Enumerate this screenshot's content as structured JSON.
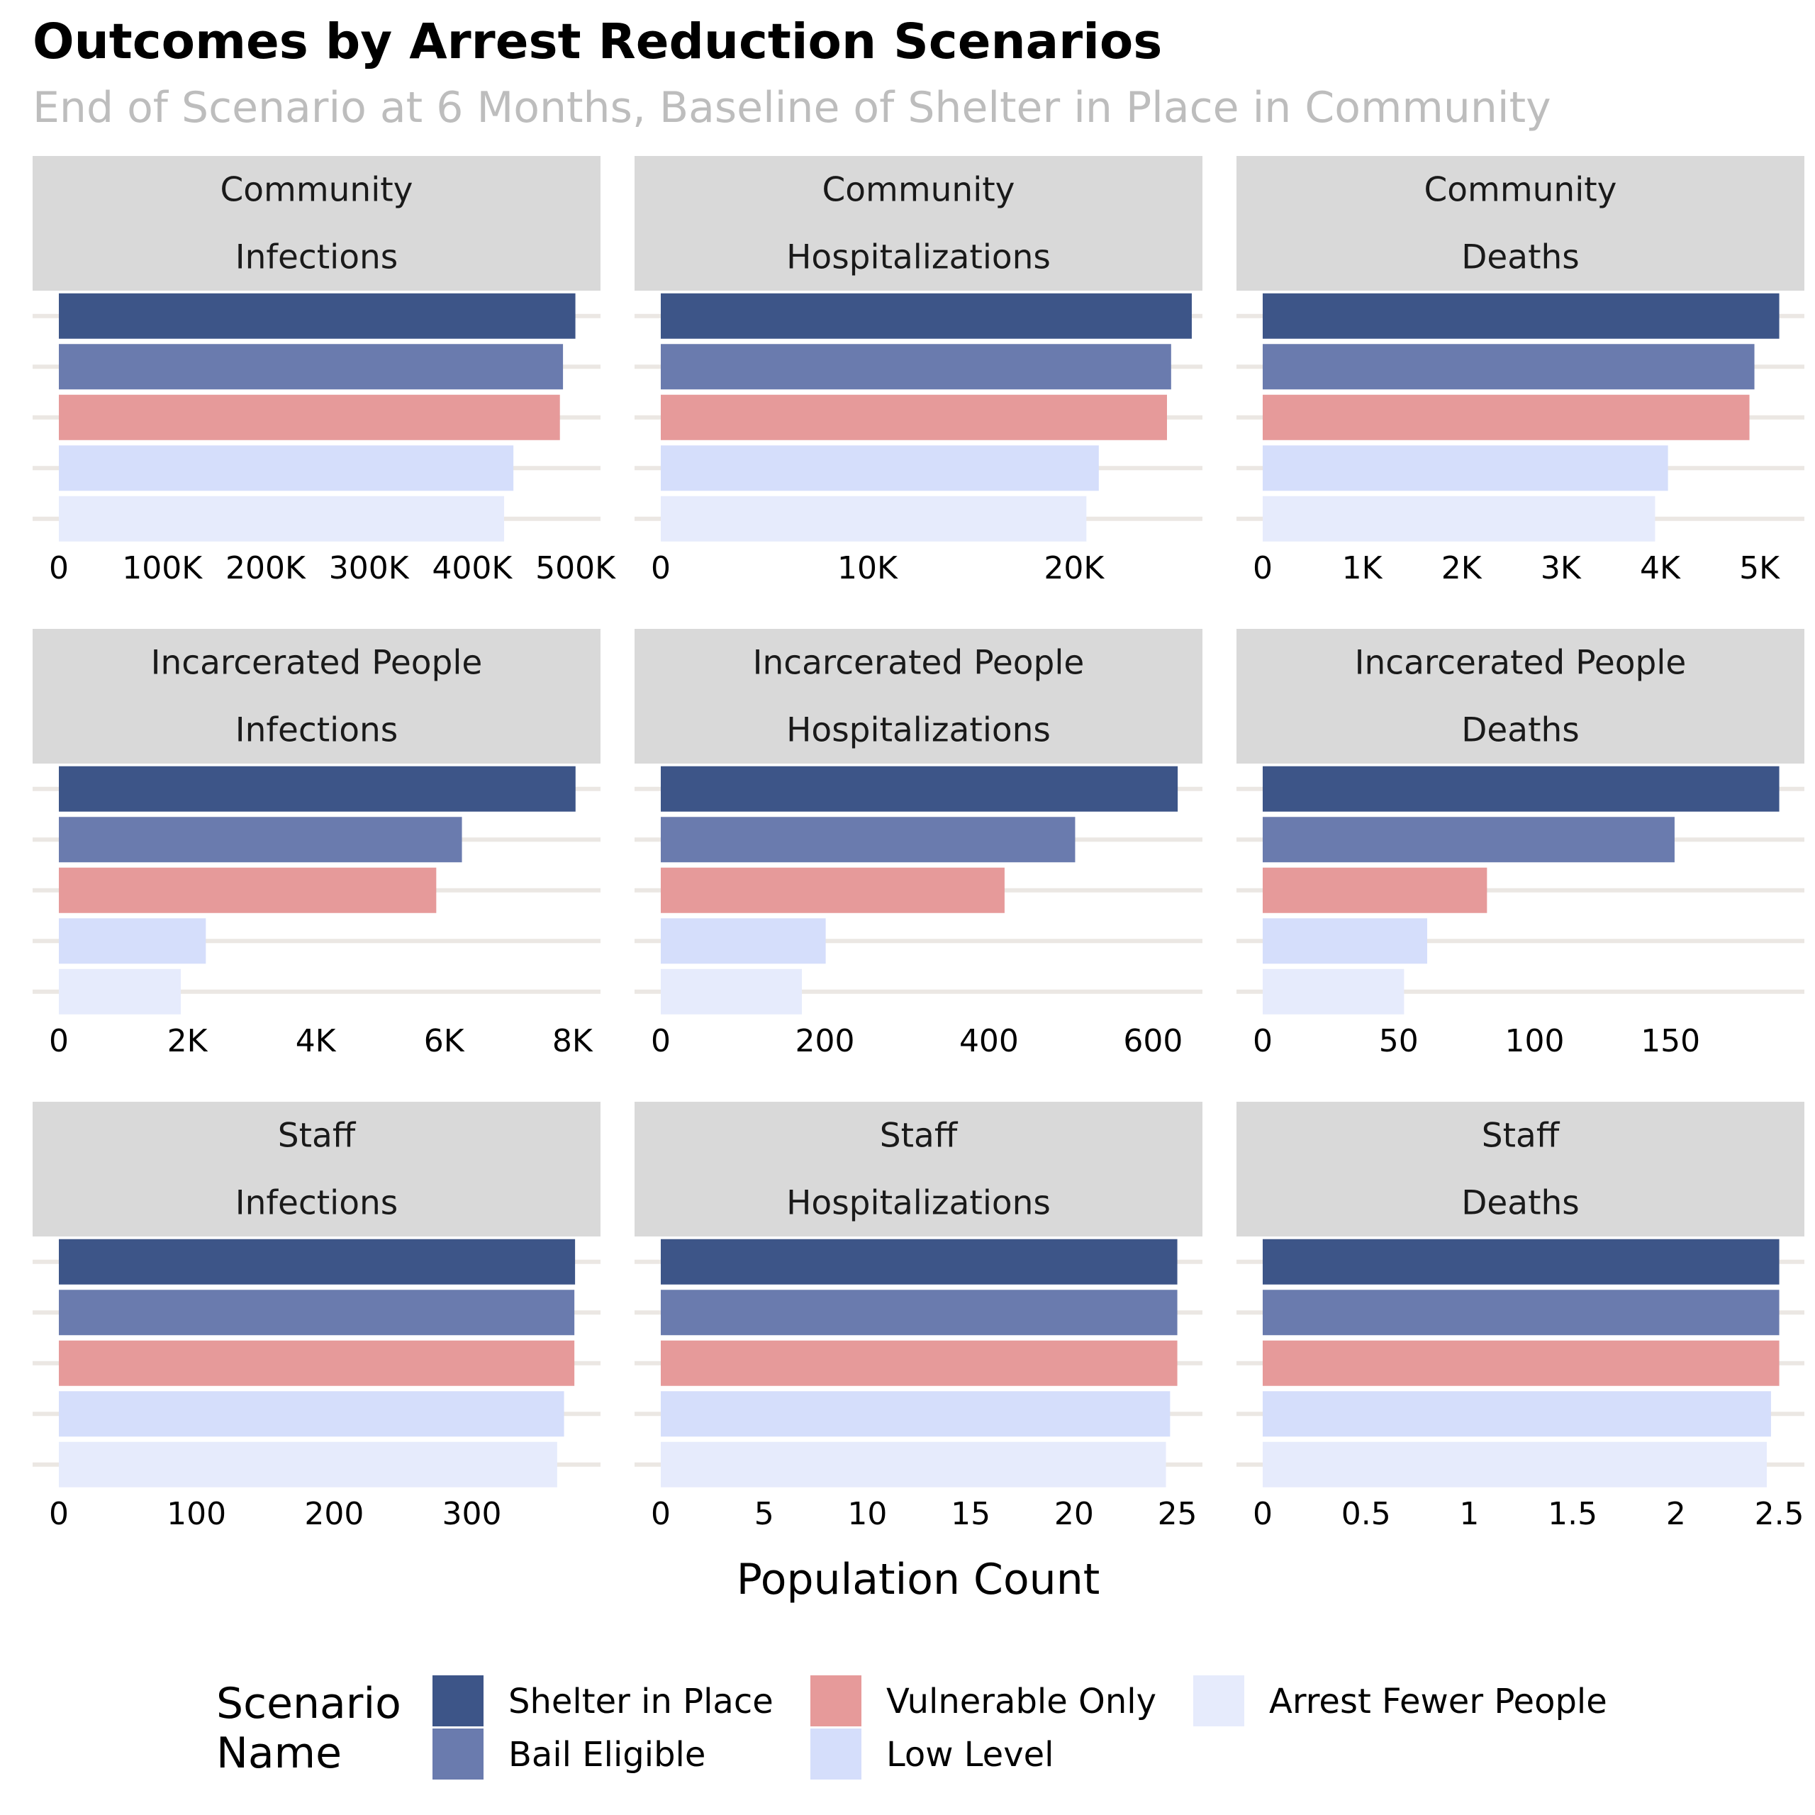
{
  "title": "Outcomes by Arrest Reduction Scenarios",
  "subtitle": "End of Scenario at 6 Months, Baseline of Shelter in Place in Community",
  "xlabel": "Population Count",
  "legend": {
    "title_lines": [
      "Scenario",
      "Name"
    ],
    "placement": "bottom"
  },
  "colors": {
    "Shelter in Place": "#3d5588",
    "Bail Eligible": "#6a7bae",
    "Vulnerable Only": "#e69a9a",
    "Low Level": "#d5defb",
    "Arrest Fewer People": "#e6ebfc",
    "strip_background": "#d9d9d9",
    "gridline": "#ebe7e3"
  },
  "chart_data": {
    "type": "bar",
    "orientation": "horizontal",
    "facet_rows": [
      "Community",
      "Incarcerated People",
      "Staff"
    ],
    "facet_cols": [
      "Infections",
      "Hospitalizations",
      "Deaths"
    ],
    "scenarios": [
      "Shelter in Place",
      "Bail Eligible",
      "Vulnerable Only",
      "Low Level",
      "Arrest Fewer People"
    ],
    "legend_order": [
      [
        "Shelter in Place",
        "Vulnerable Only",
        "Arrest Fewer People"
      ],
      [
        "Bail Eligible",
        "Low Level"
      ]
    ],
    "grid": true,
    "panels": [
      {
        "population": "Community",
        "outcome": "Infections",
        "xlim": [
          0,
          525000
        ],
        "ticks": [
          0,
          100000,
          200000,
          300000,
          400000,
          500000
        ],
        "tick_labels": [
          "0",
          "100K",
          "200K",
          "300K",
          "400K",
          "500K"
        ],
        "values": [
          500000,
          488000,
          485000,
          440000,
          431000
        ]
      },
      {
        "population": "Community",
        "outcome": "Hospitalizations",
        "xlim": [
          0,
          26250
        ],
        "ticks": [
          0,
          10000,
          20000
        ],
        "tick_labels": [
          "0",
          "10K",
          "20K"
        ],
        "values": [
          25700,
          24700,
          24500,
          21200,
          20600
        ]
      },
      {
        "population": "Community",
        "outcome": "Deaths",
        "xlim": [
          0,
          5460
        ],
        "ticks": [
          0,
          1000,
          2000,
          3000,
          4000,
          5000
        ],
        "tick_labels": [
          "0",
          "1K",
          "2K",
          "3K",
          "4K",
          "5K"
        ],
        "values": [
          5200,
          4950,
          4900,
          4080,
          3950
        ]
      },
      {
        "population": "Incarcerated People",
        "outcome": "Infections",
        "xlim": [
          0,
          8450
        ],
        "ticks": [
          0,
          2000,
          4000,
          6000,
          8000
        ],
        "tick_labels": [
          "0",
          "2K",
          "4K",
          "6K",
          "8K"
        ],
        "values": [
          8050,
          6280,
          5880,
          2290,
          1900
        ]
      },
      {
        "population": "Incarcerated People",
        "outcome": "Hospitalizations",
        "xlim": [
          0,
          661
        ],
        "ticks": [
          0,
          200,
          400,
          600
        ],
        "tick_labels": [
          "0",
          "200",
          "400",
          "600"
        ],
        "values": [
          630,
          505,
          419,
          201,
          172
        ]
      },
      {
        "population": "Incarcerated People",
        "outcome": "Deaths",
        "xlim": [
          0,
          199.5
        ],
        "ticks": [
          0,
          50,
          100,
          150
        ],
        "tick_labels": [
          "0",
          "50",
          "100",
          "150"
        ],
        "values": [
          190,
          151.5,
          82.5,
          60.5,
          52
        ]
      },
      {
        "population": "Staff",
        "outcome": "Infections",
        "xlim": [
          0,
          394
        ],
        "ticks": [
          0,
          100,
          200,
          300
        ],
        "tick_labels": [
          "0",
          "100",
          "200",
          "300"
        ],
        "values": [
          375,
          374.5,
          374.5,
          367,
          362
        ]
      },
      {
        "population": "Staff",
        "outcome": "Hospitalizations",
        "xlim": [
          0,
          26.25
        ],
        "ticks": [
          0,
          5,
          10,
          15,
          20,
          25
        ],
        "tick_labels": [
          "0",
          "5",
          "10",
          "15",
          "20",
          "25"
        ],
        "values": [
          25,
          25,
          25,
          24.65,
          24.45
        ]
      },
      {
        "population": "Staff",
        "outcome": "Deaths",
        "xlim": [
          0,
          2.625
        ],
        "ticks": [
          0,
          0.5,
          1,
          1.5,
          2,
          2.5
        ],
        "tick_labels": [
          "0",
          "0.5",
          "1",
          "1.5",
          "2",
          "2.5"
        ],
        "values": [
          2.5,
          2.5,
          2.5,
          2.46,
          2.44
        ]
      }
    ]
  }
}
